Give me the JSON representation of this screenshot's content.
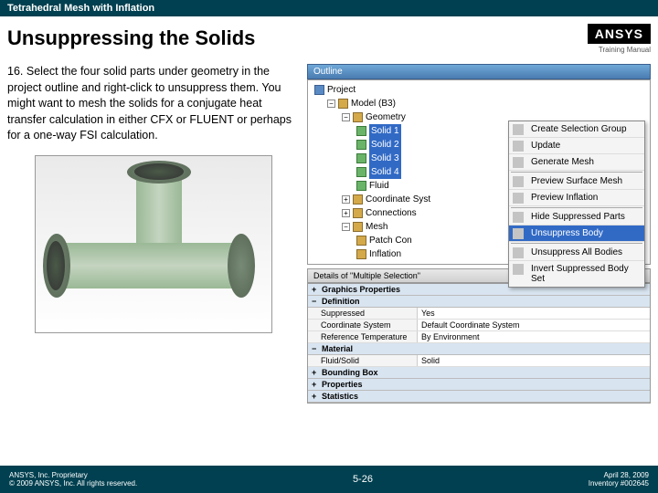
{
  "header": {
    "breadcrumb": "Tetrahedral Mesh with Inflation"
  },
  "title": "Unsuppressing the Solids",
  "logo": {
    "text": "ANSYS",
    "sub": "Training Manual"
  },
  "instruction": {
    "num": "16.",
    "text": "Select the four solid parts under geometry in the project outline and right-click to unsuppress them.  You might want to mesh the solids for a conjugate heat transfer calculation in either CFX or FLUENT or perhaps for a one-way FSI calculation."
  },
  "outline": {
    "title": "Outline",
    "root": "Project",
    "model": "Model (B3)",
    "geometry": "Geometry",
    "solids": [
      "Solid 1",
      "Solid 2",
      "Solid 3",
      "Solid 4"
    ],
    "fluid": "Fluid",
    "coord": "Coordinate Syst",
    "conn": "Connections",
    "mesh": "Mesh",
    "patch": "Patch Con",
    "inflation": "Inflation"
  },
  "ctx": {
    "items": [
      "Create Selection Group",
      "Update",
      "Generate Mesh",
      "Preview Surface Mesh",
      "Preview Inflation",
      "Hide Suppressed Parts",
      "Unsuppress Body",
      "Unsuppress All Bodies",
      "Invert Suppressed Body Set"
    ],
    "hl_index": 6
  },
  "details": {
    "title": "Details of \"Multiple Selection\"",
    "cats": [
      {
        "name": "Graphics Properties",
        "rows": []
      },
      {
        "name": "Definition",
        "rows": [
          [
            "Suppressed",
            "Yes"
          ],
          [
            "Coordinate System",
            "Default Coordinate System"
          ],
          [
            "Reference Temperature",
            "By Environment"
          ]
        ]
      },
      {
        "name": "Material",
        "rows": [
          [
            "Fluid/Solid",
            "Solid"
          ]
        ]
      },
      {
        "name": "Bounding Box",
        "rows": []
      },
      {
        "name": "Properties",
        "rows": []
      },
      {
        "name": "Statistics",
        "rows": []
      }
    ]
  },
  "footer": {
    "left1": "ANSYS, Inc. Proprietary",
    "left2": "© 2009 ANSYS, Inc.  All rights reserved.",
    "mid": "5-26",
    "right1": "April 28, 2009",
    "right2": "Inventory #002645"
  }
}
